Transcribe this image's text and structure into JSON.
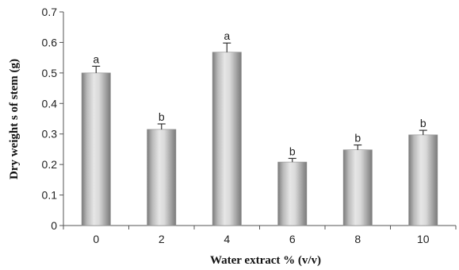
{
  "chart_data": {
    "type": "bar",
    "xlabel": "Water extract % (v/v)",
    "ylabel": "Dry weight s of stem (g)",
    "categories": [
      "0",
      "2",
      "4",
      "6",
      "8",
      "10"
    ],
    "values": [
      0.5,
      0.315,
      0.568,
      0.208,
      0.248,
      0.297
    ],
    "errors": [
      0.022,
      0.018,
      0.03,
      0.012,
      0.016,
      0.015
    ],
    "significance": [
      "a",
      "b",
      "a",
      "b",
      "b",
      "b"
    ],
    "ylim": [
      0,
      0.7
    ],
    "yticks": [
      "0",
      "0.1",
      "0.2",
      "0.3",
      "0.4",
      "0.5",
      "0.6",
      "0.7"
    ],
    "grid": false,
    "legend": "none",
    "colors": {
      "bar_dark": "#7a7a7a",
      "bar_light": "#e6e6e6",
      "axis": "#555555"
    }
  }
}
